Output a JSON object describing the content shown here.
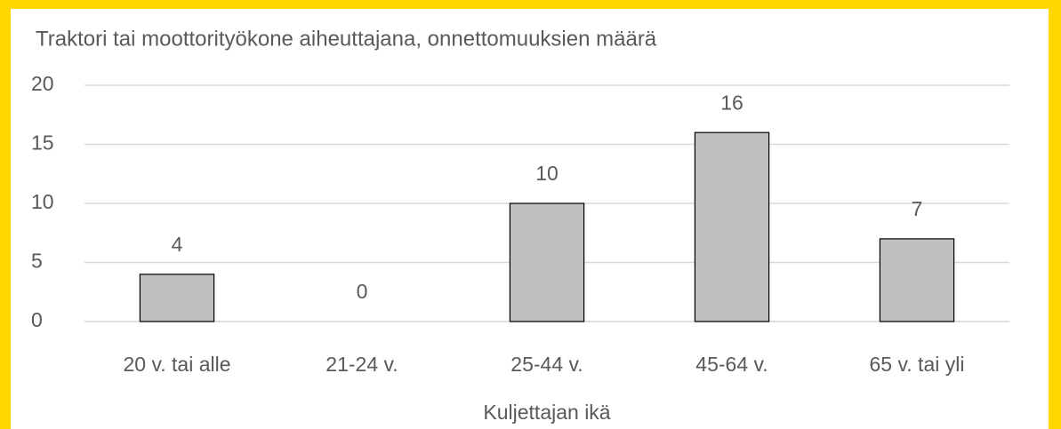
{
  "chart_data": {
    "type": "bar",
    "title": "Traktori tai moottorityökone aiheuttajana, onnettomuuksien määrä",
    "x_label": "Kuljettajan ikä",
    "categories": [
      "20 v. tai alle",
      "21-24 v.",
      "25-44 v.",
      "45-64 v.",
      "65 v. tai yli"
    ],
    "values": [
      4,
      0,
      10,
      16,
      7
    ],
    "color": "#bfbfbf",
    "ylim": [
      0,
      20
    ],
    "yticks": [
      0,
      5,
      10,
      15,
      20
    ],
    "grid": true
  }
}
